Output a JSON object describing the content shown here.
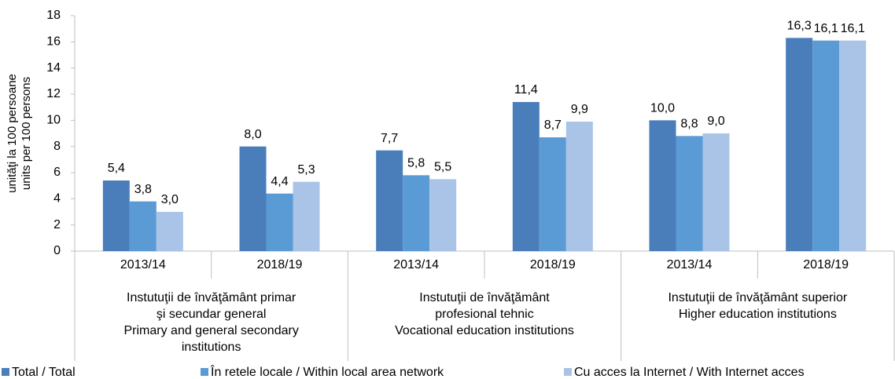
{
  "chart_data": {
    "type": "bar",
    "ylabel": [
      "unităţi la 100 persoane",
      "units per 100 persons"
    ],
    "categories": [
      "2013/14",
      "2018/19",
      "2013/14",
      "2018/19",
      "2013/14",
      "2018/19"
    ],
    "groups": [
      {
        "lines": [
          "Instutuţii de învăţământ primar",
          "şi secundar general",
          "Primary and general secondary",
          "institutions"
        ],
        "span": [
          0,
          1
        ]
      },
      {
        "lines": [
          "Instutuţii de învăţământ",
          "profesional tehnic",
          "Vocational education institutions"
        ],
        "span": [
          2,
          3
        ]
      },
      {
        "lines": [
          "Instutuţii de învăţământ superior",
          "Higher education institutions"
        ],
        "span": [
          4,
          5
        ]
      }
    ],
    "series": [
      {
        "name": "Total / Total",
        "color": "#4a7ebb",
        "values": [
          5.4,
          8.0,
          7.7,
          11.4,
          10.0,
          16.3
        ],
        "value_labels": [
          "5,4",
          "8,0",
          "7,7",
          "11,4",
          "10,0",
          "16,3"
        ]
      },
      {
        "name": "În retele locale / Within local area network",
        "color": "#5b9bd5",
        "values": [
          3.8,
          4.4,
          5.8,
          8.7,
          8.8,
          16.1
        ],
        "value_labels": [
          "3,8",
          "4,4",
          "5,8",
          "8,7",
          "8,8",
          "16,1"
        ]
      },
      {
        "name": "Cu acces la Internet / With Internet acces",
        "color": "#a9c4e6",
        "values": [
          3.0,
          5.3,
          5.5,
          9.9,
          9.0,
          16.1
        ],
        "value_labels": [
          "3,0",
          "5,3",
          "5,5",
          "9,9",
          "9,0",
          "16,1"
        ]
      }
    ],
    "ylim": [
      0,
      18
    ],
    "yticks": [
      0,
      2,
      4,
      6,
      8,
      10,
      12,
      14,
      16,
      18
    ],
    "grid": false,
    "legend": "bottom"
  }
}
